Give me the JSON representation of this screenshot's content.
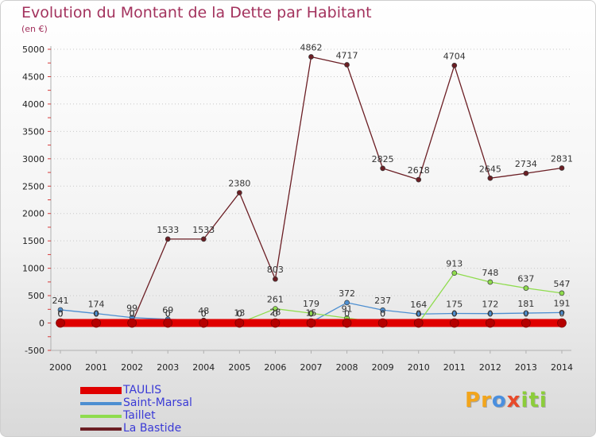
{
  "chart_data": {
    "type": "line",
    "title": "Evolution du Montant de la Dette par Habitant",
    "subtitle": "(en €)",
    "categories": [
      "2000",
      "2001",
      "2002",
      "2003",
      "2004",
      "2005",
      "2006",
      "2007",
      "2008",
      "2009",
      "2010",
      "2011",
      "2012",
      "2013",
      "2014"
    ],
    "ylim": [
      -500,
      5000
    ],
    "y_ticks": [
      "-500",
      "0",
      "500",
      "1000",
      "1500",
      "2000",
      "2500",
      "3000",
      "3500",
      "4000",
      "4500",
      "5000"
    ],
    "legend_position": "bottom-left",
    "series": [
      {
        "name": "TAULIS",
        "color": "#e00000",
        "values": [
          0,
          0,
          0,
          0,
          0,
          0,
          0,
          0,
          0,
          0,
          0,
          0,
          0,
          0,
          0
        ],
        "labels": [
          "0",
          "0",
          "0",
          "0",
          "0",
          "0",
          "0",
          "0",
          "0",
          "0",
          "0",
          "0",
          "0",
          "0",
          "0"
        ]
      },
      {
        "name": "Saint-Marsal",
        "color": "#4d8fd1",
        "values": [
          241,
          174,
          99,
          69,
          48,
          13,
          28,
          15,
          372,
          237,
          164,
          175,
          172,
          181,
          191
        ],
        "labels": [
          "241",
          "174",
          "99",
          "69",
          "48",
          "13",
          "28",
          "15",
          "372",
          "237",
          "164",
          "175",
          "172",
          "181",
          "191"
        ]
      },
      {
        "name": "Taillet",
        "color": "#8fdc4e",
        "values": [
          0,
          0,
          0,
          0,
          0,
          0,
          261,
          179,
          91,
          0,
          0,
          913,
          748,
          637,
          547
        ],
        "labels": [
          "0",
          "0",
          "0",
          "0",
          "0",
          "0",
          "261",
          "179",
          "91",
          "0",
          "0",
          "913",
          "748",
          "637",
          "547"
        ]
      },
      {
        "name": "La Bastide",
        "color": "#6b1e24",
        "values": [
          0,
          0,
          0,
          1533,
          1533,
          2380,
          803,
          4862,
          4717,
          2825,
          2618,
          4704,
          2645,
          2734,
          2831
        ],
        "labels": [
          "0",
          "0",
          "0",
          "1533",
          "1533",
          "2380",
          "803",
          "4862",
          "4717",
          "2825",
          "2618",
          "4704",
          "2645",
          "2734",
          "2831"
        ]
      }
    ]
  },
  "brand": {
    "letters": [
      "P",
      "r",
      "o",
      "x",
      "i",
      "t",
      "i"
    ],
    "colors": [
      "#f2a51c",
      "#f2a51c",
      "#4a8fdf",
      "#e84a2a",
      "#8ccd3a",
      "#8ccd3a",
      "#8ccd3a"
    ]
  }
}
